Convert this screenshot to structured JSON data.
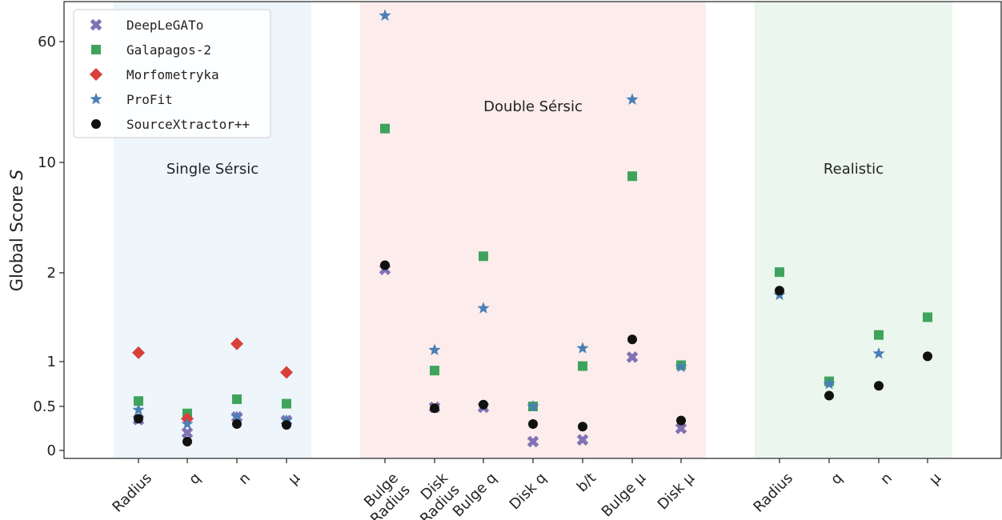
{
  "chart_data": {
    "type": "scatter",
    "ylabel": "Global Score",
    "ylabel_symbol": "S",
    "y_scale": "log-like",
    "y_ticks": [
      0,
      0.5,
      1,
      2,
      10,
      60
    ],
    "grid": false,
    "legend_position": "top-left",
    "categories": [
      "Radius",
      "q",
      "n",
      "μ",
      "Bulge Radius",
      "Disk Radius",
      "Bulge q",
      "Disk q",
      "b/t",
      "Bulge μ",
      "Disk μ",
      "Radius",
      "q",
      "n",
      "μ"
    ],
    "regions": [
      {
        "label": "Single Sérsic",
        "color": "#eef5fb",
        "first": 0,
        "last": 3
      },
      {
        "label": "Double Sérsic",
        "color": "#fcecec",
        "first": 4,
        "last": 10
      },
      {
        "label": "Realistic",
        "color": "#ebf6ee",
        "first": 11,
        "last": 14
      }
    ],
    "series": [
      {
        "name": "DeepLeGATo",
        "color": "#8172b3",
        "marker": "x",
        "values": [
          0.35,
          0.2,
          0.38,
          0.34,
          2.25,
          0.49,
          0.49,
          0.1,
          0.12,
          1.05,
          0.25,
          null,
          null,
          null,
          null
        ]
      },
      {
        "name": "Galapagos-2",
        "color": "#3fa45b",
        "marker": "square",
        "values": [
          0.56,
          0.42,
          0.58,
          0.53,
          24,
          0.9,
          3.2,
          0.5,
          0.95,
          9,
          0.96,
          2.05,
          0.78,
          1.3,
          1.5
        ]
      },
      {
        "name": "Morfometryka",
        "color": "#d9403a",
        "marker": "diamond",
        "values": [
          1.1,
          0.36,
          1.2,
          0.88,
          null,
          null,
          null,
          null,
          null,
          null,
          null,
          null,
          null,
          null,
          null
        ]
      },
      {
        "name": "ProFit",
        "color": "#4a7fb5",
        "marker": "star",
        "values": [
          0.46,
          0.3,
          0.38,
          0.34,
          85,
          1.13,
          1.6,
          0.5,
          1.15,
          36,
          0.94,
          1.75,
          0.75,
          1.09,
          null
        ]
      },
      {
        "name": "SourceXtractor++",
        "color": "#111111",
        "marker": "circle",
        "values": [
          0.36,
          0.1,
          0.3,
          0.29,
          2.55,
          0.48,
          0.52,
          0.3,
          0.27,
          1.25,
          0.34,
          1.8,
          0.62,
          0.73,
          1.06
        ]
      }
    ]
  }
}
